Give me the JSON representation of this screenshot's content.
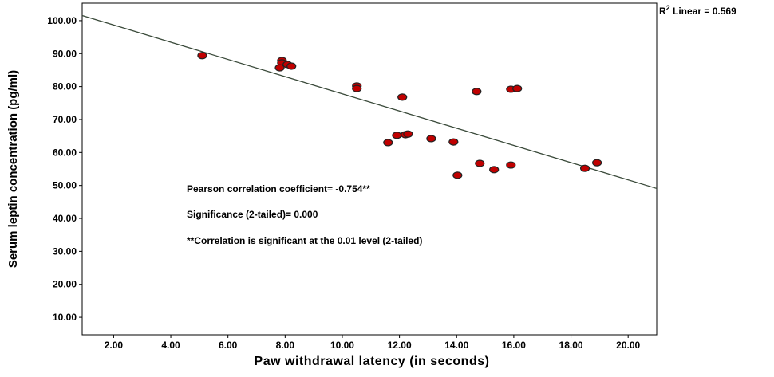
{
  "chart_data": {
    "type": "scatter",
    "xlabel": "Paw withdrawal latency (in seconds)",
    "ylabel": "Serum leptin concentration (pg/ml)",
    "xlim": [
      0.9,
      21.0
    ],
    "ylim": [
      4.7,
      105.3
    ],
    "xticks": [
      "2.00",
      "4.00",
      "6.00",
      "8.00",
      "10.00",
      "12.00",
      "14.00",
      "16.00",
      "18.00",
      "20.00"
    ],
    "xtick_values": [
      2,
      4,
      6,
      8,
      10,
      12,
      14,
      16,
      18,
      20
    ],
    "yticks": [
      "10.00",
      "20.00",
      "30.00",
      "40.00",
      "50.00",
      "60.00",
      "70.00",
      "80.00",
      "90.00",
      "100.00"
    ],
    "ytick_values": [
      10,
      20,
      30,
      40,
      50,
      60,
      70,
      80,
      90,
      100
    ],
    "points": [
      [
        5.1,
        89.4
      ],
      [
        7.89,
        87.9
      ],
      [
        7.89,
        87.2
      ],
      [
        8.08,
        86.7
      ],
      [
        8.22,
        86.2
      ],
      [
        7.81,
        85.7
      ],
      [
        10.51,
        80.2
      ],
      [
        10.51,
        79.4
      ],
      [
        12.1,
        76.8
      ],
      [
        14.7,
        78.5
      ],
      [
        15.9,
        79.2
      ],
      [
        16.12,
        79.4
      ],
      [
        11.6,
        63.0
      ],
      [
        11.91,
        65.2
      ],
      [
        12.21,
        65.4
      ],
      [
        12.3,
        65.6
      ],
      [
        13.11,
        64.2
      ],
      [
        13.89,
        63.2
      ],
      [
        14.03,
        53.1
      ],
      [
        14.81,
        56.7
      ],
      [
        15.31,
        54.8
      ],
      [
        15.9,
        56.2
      ],
      [
        18.49,
        55.2
      ],
      [
        18.91,
        56.9
      ]
    ],
    "fit_line": {
      "slope": -2.61,
      "intercept": 103.9
    },
    "point_color": "#c00000",
    "line_color": "#3a4a3a",
    "r2_label": {
      "prefix": "R",
      "sup": "2",
      "suffix": " Linear = 0.569"
    },
    "annotations": [
      "Pearson correlation coefficient= -0.754**",
      "Significance (2-tailed)= 0.000",
      "**Correlation is significant at the 0.01 level (2-tailed)"
    ]
  }
}
